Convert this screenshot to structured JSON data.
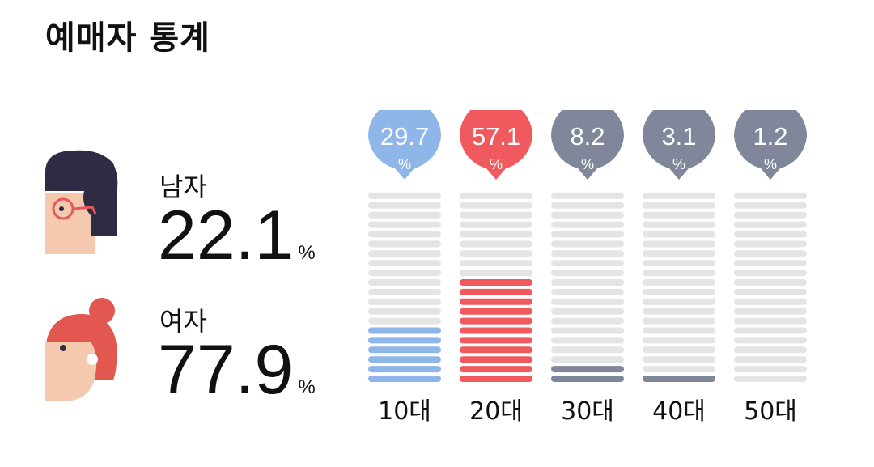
{
  "title": "예매자 통계",
  "gender": {
    "male": {
      "label": "남자",
      "value": "22.1",
      "unit": "%"
    },
    "female": {
      "label": "여자",
      "value": "77.9",
      "unit": "%"
    }
  },
  "chart_data": {
    "type": "bar",
    "categories": [
      "10대",
      "20대",
      "30대",
      "40대",
      "50대"
    ],
    "values": [
      29.7,
      57.1,
      8.2,
      3.1,
      1.2
    ],
    "unit": "%",
    "segments_total": 20,
    "filled_segments": [
      6,
      11,
      2,
      1,
      0
    ],
    "colors": [
      "#8fb6e8",
      "#f05a5f",
      "#80879a",
      "#80879a",
      "#80879a"
    ],
    "empty_color": "#e4e4e4",
    "title": "",
    "xlabel": "",
    "ylabel": ""
  }
}
